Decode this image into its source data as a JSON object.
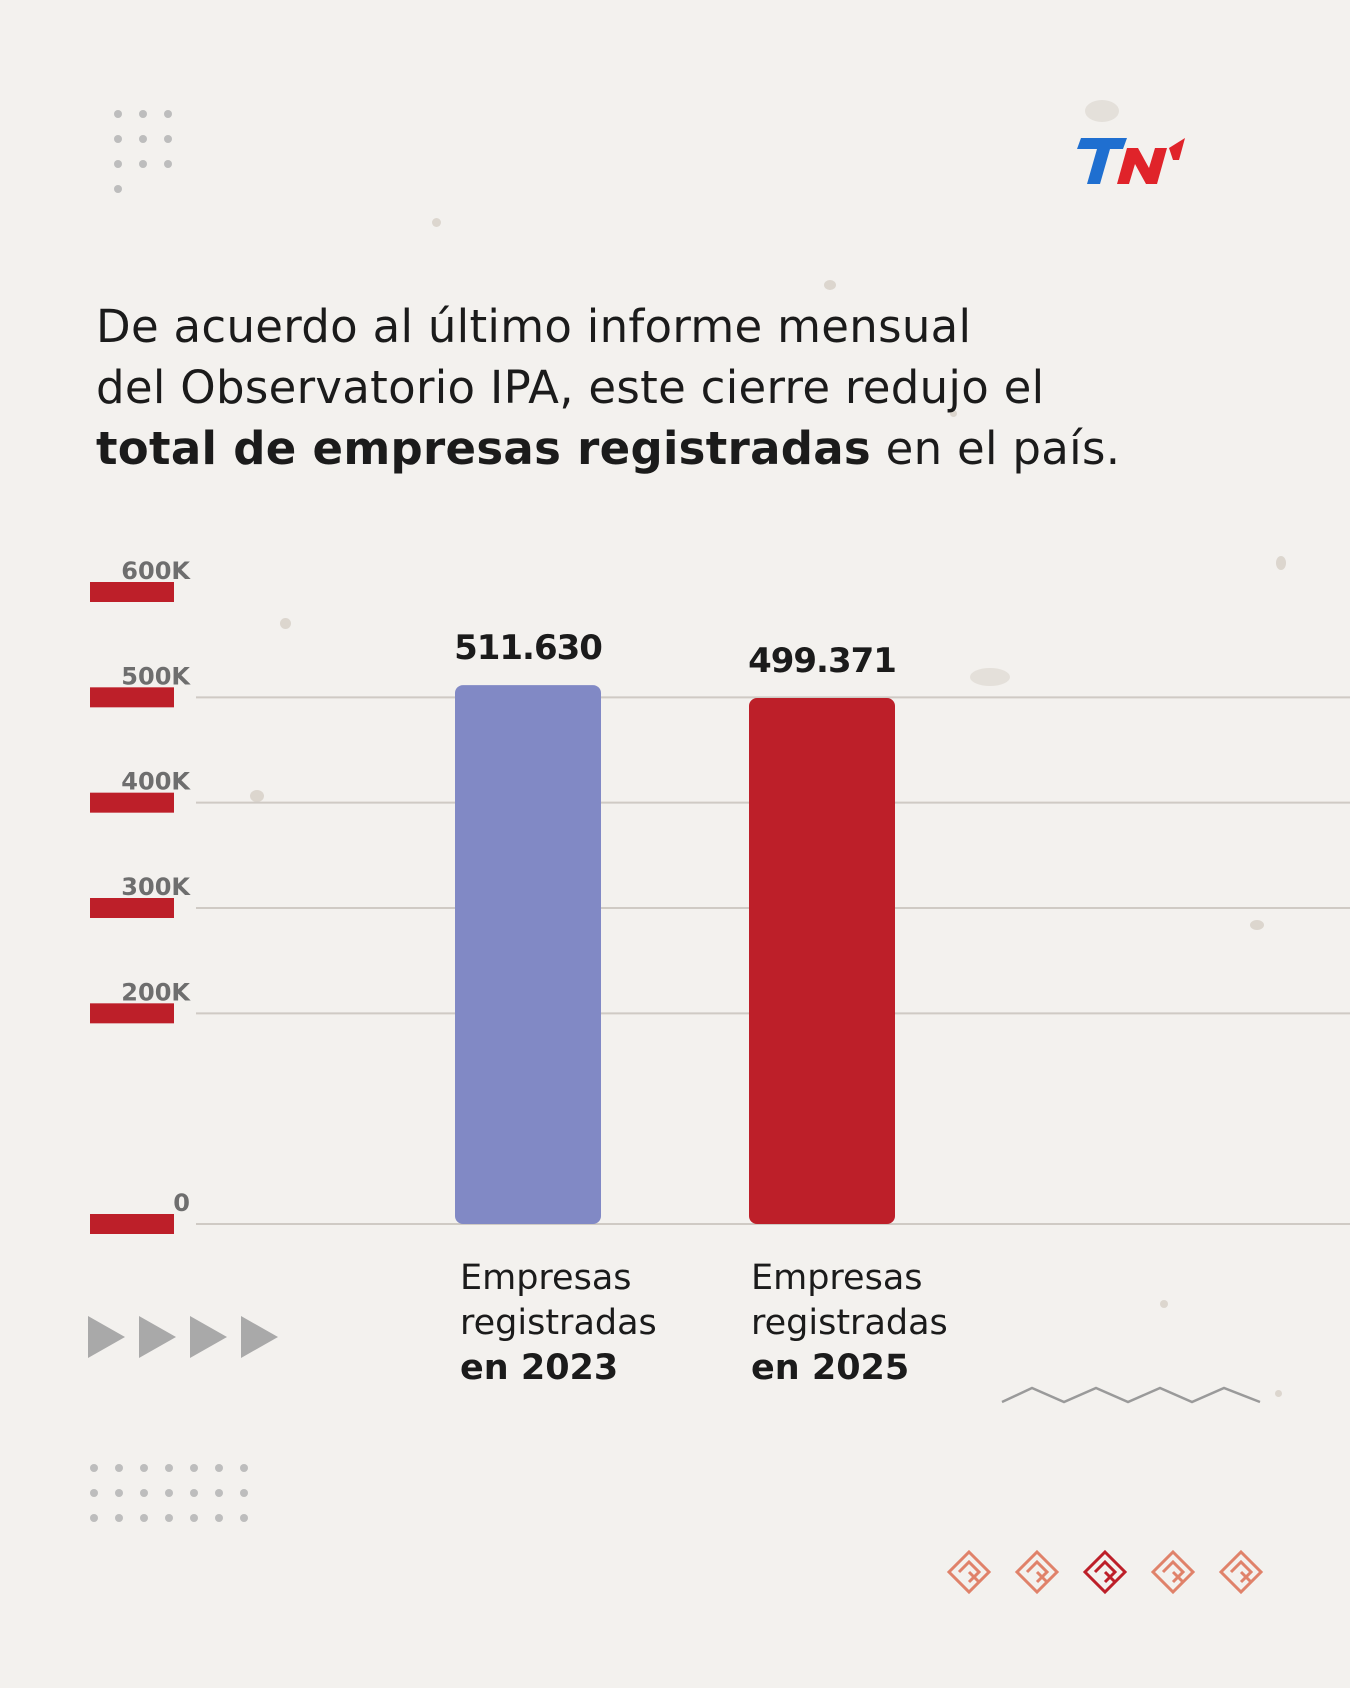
{
  "brand": {
    "logo_text": "TN",
    "colors": {
      "red": "#e0232a",
      "blue": "#1f6fd0",
      "dark": "#1a1a1a"
    }
  },
  "headline": {
    "line1": "De acuerdo al último informe mensual",
    "line2": "del Observatorio IPA, este cierre redujo el",
    "bold": "total de empresas registradas",
    "rest": " en el país."
  },
  "categories": [
    {
      "line1": "Empresas",
      "line2": "registradas",
      "bold": "en 2023"
    },
    {
      "line1": "Empresas",
      "line2": "registradas",
      "bold": "en 2025"
    }
  ],
  "icons": {
    "decorative": [
      "play-arrow-icon",
      "zigzag-line-icon",
      "lozenge-knot-icon"
    ]
  },
  "chart_data": {
    "type": "bar",
    "categories": [
      "Empresas registradas en 2023",
      "Empresas registradas en 2025"
    ],
    "values": [
      511630,
      499371
    ],
    "value_labels": [
      "511.630",
      "499.371"
    ],
    "colors": [
      "#8189c5",
      "#bd1f29"
    ],
    "yticks": [
      0,
      200000,
      300000,
      400000,
      500000,
      600000
    ],
    "ytick_labels": [
      "0",
      "200K",
      "300K",
      "400K",
      "500K",
      "600K"
    ],
    "ylim": [
      0,
      600000
    ],
    "grid": true,
    "tick_marker_color": "#bd1f29"
  }
}
